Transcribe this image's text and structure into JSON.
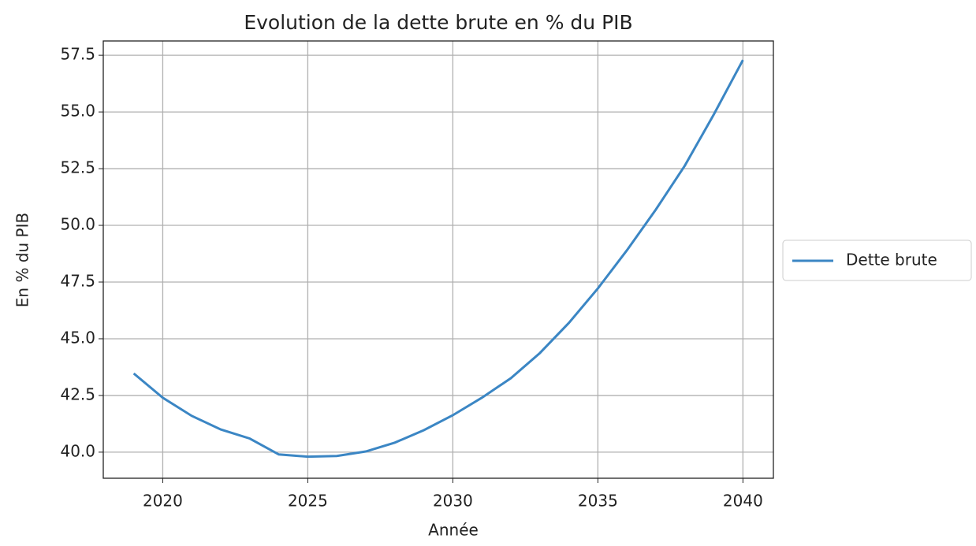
{
  "chart_data": {
    "type": "line",
    "title": "Evolution de la dette brute en % du PIB",
    "x_label": "Année",
    "y_label": "En % du PIB",
    "x": [
      2019,
      2020,
      2021,
      2022,
      2023,
      2024,
      2025,
      2026,
      2027,
      2028,
      2029,
      2030,
      2031,
      2032,
      2033,
      2034,
      2035,
      2036,
      2037,
      2038,
      2039,
      2040
    ],
    "series": [
      {
        "name": "Dette brute",
        "color": "#3b86c4",
        "values": [
          43.47,
          42.4,
          41.6,
          41.0,
          40.6,
          39.9,
          39.8,
          39.83,
          40.03,
          40.42,
          40.97,
          41.63,
          42.4,
          43.26,
          44.37,
          45.7,
          47.22,
          48.9,
          50.7,
          52.64,
          54.9,
          57.29
        ]
      }
    ],
    "xlim": [
      2017.95,
      2041.05
    ],
    "xticks": [
      2020,
      2025,
      2030,
      2035,
      2040
    ],
    "ylim": [
      38.85,
      58.13
    ],
    "yticks": [
      {
        "value": 40,
        "label": "40.0"
      },
      {
        "value": 42.5,
        "label": "42.5"
      },
      {
        "value": 45,
        "label": "45.0"
      },
      {
        "value": 47.5,
        "label": "47.5"
      },
      {
        "value": 50,
        "label": "50.0"
      },
      {
        "value": 52.5,
        "label": "52.5"
      },
      {
        "value": 55,
        "label": "55.0"
      },
      {
        "value": 57.5,
        "label": "57.5"
      }
    ],
    "grid": true,
    "legend": "right"
  }
}
